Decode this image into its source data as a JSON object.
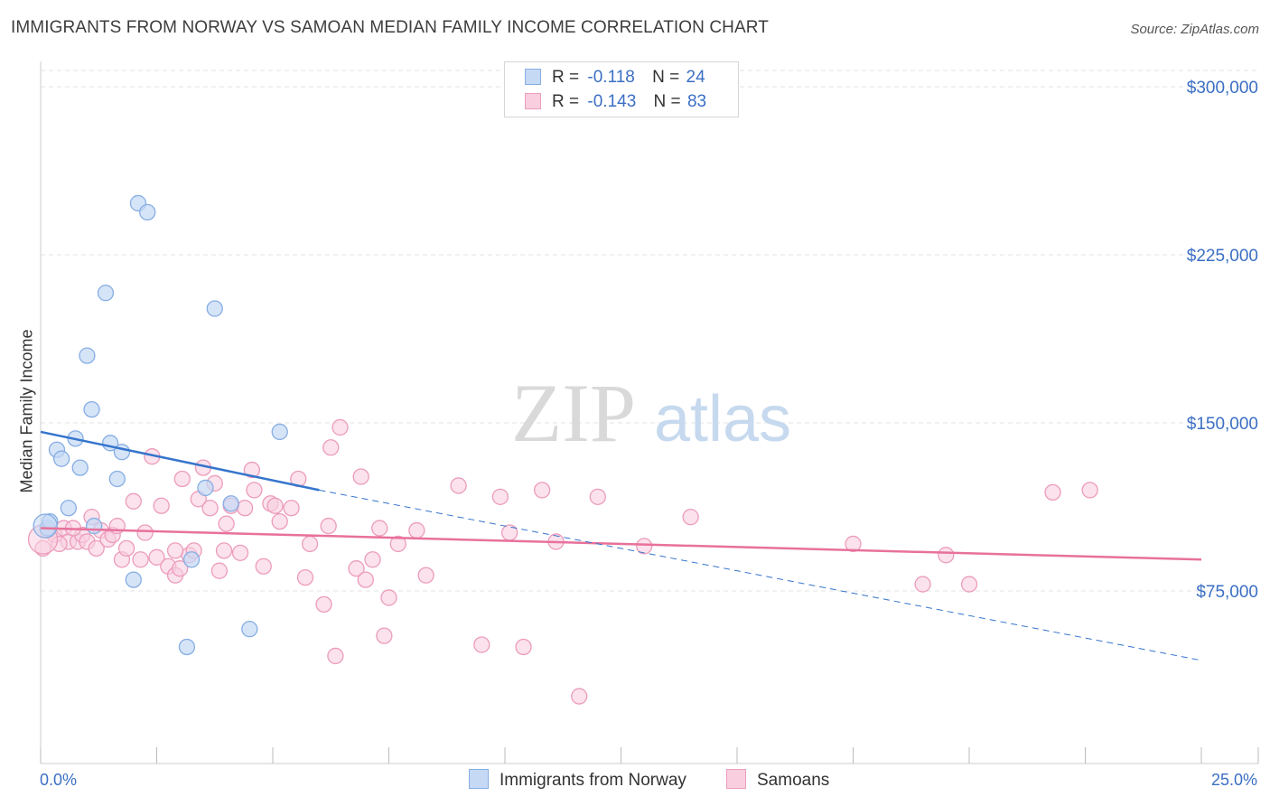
{
  "header": {
    "title": "IMMIGRANTS FROM NORWAY VS SAMOAN MEDIAN FAMILY INCOME CORRELATION CHART",
    "source": "Source: ZipAtlas.com"
  },
  "watermark": {
    "zip": "ZIP",
    "atlas": "atlas"
  },
  "colors": {
    "blue_fill": "#c5d9f5",
    "blue_stroke": "#86aee3",
    "blue_line": "#3575cc",
    "pink_fill": "#f9cfe0",
    "pink_stroke": "#ec9cbb",
    "pink_line": "#e8719b",
    "axis_text": "#3b6fc4",
    "grid": "#e3e3e3"
  },
  "legend": {
    "rows": [
      {
        "r_label": "R =",
        "r_value": "-0.118",
        "n_label": "N =",
        "n_value": "24"
      },
      {
        "r_label": "R =",
        "r_value": "-0.143",
        "n_label": "N =",
        "n_value": "83"
      }
    ],
    "series_names": [
      "Immigrants from Norway",
      "Samoans"
    ]
  },
  "chart_data": {
    "type": "scatter",
    "title": "IMMIGRANTS FROM NORWAY VS SAMOAN MEDIAN FAMILY INCOME CORRELATION CHART",
    "xlabel": "",
    "ylabel": "Median Family Income",
    "xlim": [
      0,
      25
    ],
    "ylim": [
      0,
      315000
    ],
    "x_tick_labels": [
      "0.0%",
      "25.0%"
    ],
    "y_ticks": [
      75000,
      150000,
      225000,
      300000
    ],
    "y_tick_labels": [
      "$75,000",
      "$150,000",
      "$225,000",
      "$300,000"
    ],
    "grid": true,
    "series": [
      {
        "name": "Immigrants from Norway",
        "r": -0.118,
        "n": 24,
        "points": [
          [
            0.15,
            103000
          ],
          [
            0.2,
            106000
          ],
          [
            0.35,
            138000
          ],
          [
            0.45,
            134000
          ],
          [
            0.6,
            112000
          ],
          [
            0.75,
            143000
          ],
          [
            0.85,
            130000
          ],
          [
            1.0,
            180000
          ],
          [
            1.1,
            156000
          ],
          [
            1.4,
            208000
          ],
          [
            1.5,
            141000
          ],
          [
            1.65,
            125000
          ],
          [
            1.75,
            137000
          ],
          [
            1.15,
            104000
          ],
          [
            2.1,
            248000
          ],
          [
            2.3,
            244000
          ],
          [
            2.0,
            80000
          ],
          [
            3.15,
            50000
          ],
          [
            3.25,
            89000
          ],
          [
            3.55,
            121000
          ],
          [
            3.75,
            201000
          ],
          [
            4.1,
            114000
          ],
          [
            4.5,
            58000
          ],
          [
            5.15,
            146000
          ]
        ],
        "trend_solid": [
          [
            0.0,
            146000
          ],
          [
            6.0,
            120000
          ]
        ],
        "trend_dashed": [
          [
            6.0,
            120000
          ],
          [
            25.0,
            44000
          ]
        ]
      },
      {
        "name": "Samoans",
        "r": -0.143,
        "n": 83,
        "points": [
          [
            0.05,
            94000
          ],
          [
            0.3,
            100000
          ],
          [
            0.5,
            103000
          ],
          [
            0.6,
            97000
          ],
          [
            0.8,
            97000
          ],
          [
            0.9,
            100000
          ],
          [
            1.0,
            97000
          ],
          [
            1.1,
            108000
          ],
          [
            1.2,
            94000
          ],
          [
            1.3,
            102000
          ],
          [
            1.45,
            98000
          ],
          [
            1.55,
            100000
          ],
          [
            1.65,
            104000
          ],
          [
            1.75,
            89000
          ],
          [
            1.85,
            94000
          ],
          [
            2.0,
            115000
          ],
          [
            2.15,
            89000
          ],
          [
            2.25,
            101000
          ],
          [
            2.4,
            135000
          ],
          [
            2.5,
            90000
          ],
          [
            2.6,
            113000
          ],
          [
            2.75,
            86000
          ],
          [
            2.9,
            82000
          ],
          [
            3.0,
            85000
          ],
          [
            3.05,
            125000
          ],
          [
            3.2,
            91000
          ],
          [
            3.3,
            93000
          ],
          [
            3.4,
            116000
          ],
          [
            3.5,
            130000
          ],
          [
            3.65,
            112000
          ],
          [
            3.75,
            123000
          ],
          [
            3.85,
            84000
          ],
          [
            3.95,
            93000
          ],
          [
            4.0,
            105000
          ],
          [
            4.1,
            113000
          ],
          [
            4.3,
            92000
          ],
          [
            4.4,
            112000
          ],
          [
            4.55,
            129000
          ],
          [
            4.6,
            120000
          ],
          [
            4.8,
            86000
          ],
          [
            4.95,
            114000
          ],
          [
            5.05,
            113000
          ],
          [
            5.15,
            106000
          ],
          [
            5.4,
            112000
          ],
          [
            5.55,
            125000
          ],
          [
            5.7,
            81000
          ],
          [
            5.8,
            96000
          ],
          [
            6.1,
            69000
          ],
          [
            6.2,
            104000
          ],
          [
            6.25,
            139000
          ],
          [
            6.35,
            46000
          ],
          [
            6.45,
            148000
          ],
          [
            6.8,
            85000
          ],
          [
            6.9,
            126000
          ],
          [
            7.0,
            80000
          ],
          [
            7.15,
            89000
          ],
          [
            7.3,
            103000
          ],
          [
            7.4,
            55000
          ],
          [
            7.5,
            72000
          ],
          [
            7.7,
            96000
          ],
          [
            8.1,
            102000
          ],
          [
            8.3,
            82000
          ],
          [
            9.0,
            122000
          ],
          [
            9.5,
            51000
          ],
          [
            9.9,
            117000
          ],
          [
            10.1,
            101000
          ],
          [
            10.4,
            50000
          ],
          [
            10.8,
            120000
          ],
          [
            11.1,
            97000
          ],
          [
            11.6,
            28000
          ],
          [
            12.0,
            117000
          ],
          [
            13.0,
            95000
          ],
          [
            14.0,
            108000
          ],
          [
            17.5,
            96000
          ],
          [
            19.0,
            78000
          ],
          [
            19.5,
            91000
          ],
          [
            20.0,
            78000
          ],
          [
            21.8,
            119000
          ],
          [
            22.6,
            120000
          ],
          [
            0.15,
            102000
          ],
          [
            0.4,
            96000
          ],
          [
            0.7,
            103000
          ],
          [
            2.9,
            93000
          ]
        ],
        "trend_solid": [
          [
            0.0,
            103000
          ],
          [
            25.0,
            89000
          ]
        ]
      }
    ]
  }
}
